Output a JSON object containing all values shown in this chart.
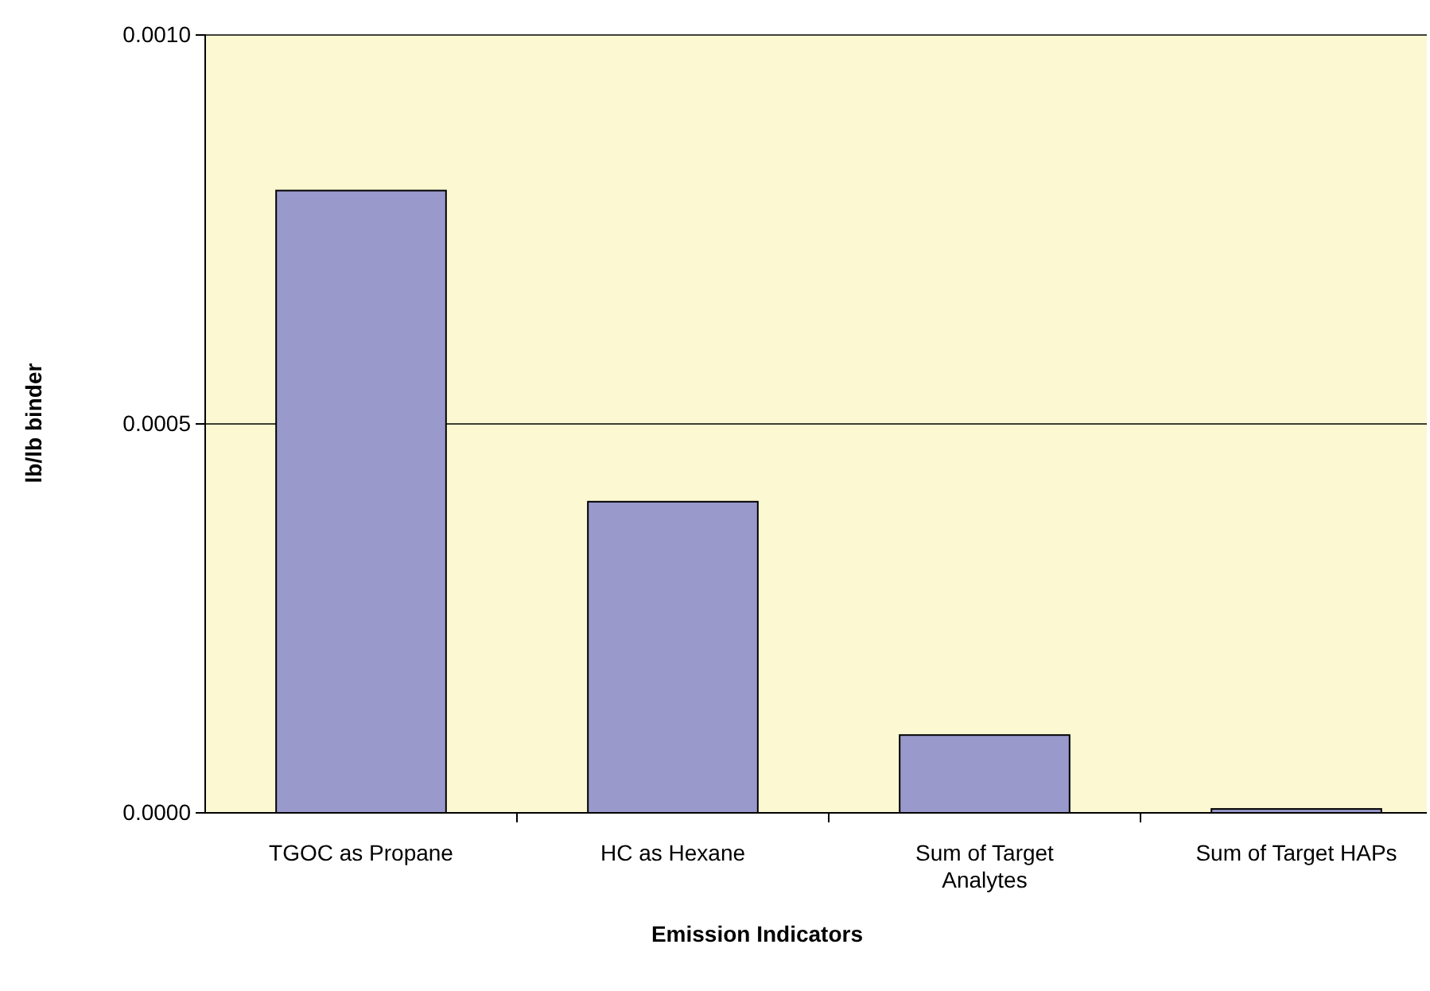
{
  "chart_data": {
    "type": "bar",
    "xlabel": "Emission Indicators",
    "ylabel": "lb/lb binder",
    "categories": [
      "TGOC as Propane",
      "HC as Hexane",
      "Sum of Target Analytes",
      "Sum of Target HAPs"
    ],
    "values": [
      0.0008,
      0.0004,
      0.0001,
      5e-06
    ],
    "color": "#9999cc",
    "ylim": [
      0,
      0.001
    ],
    "yticks": [
      {
        "value": 0,
        "label": "0.0000"
      },
      {
        "value": 0.0005,
        "label": "0.0005"
      },
      {
        "value": 0.001,
        "label": "0.0010"
      }
    ],
    "grid": "y"
  }
}
